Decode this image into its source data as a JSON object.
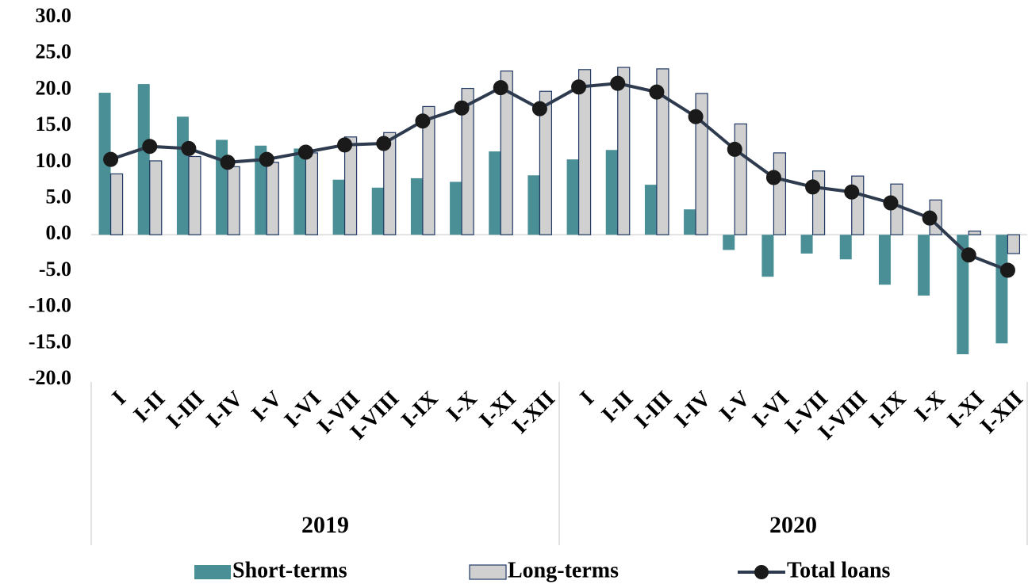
{
  "chart_data": {
    "type": "bar_line",
    "categories": [
      "I",
      "I-II",
      "I-III",
      "I-IV",
      "I-V",
      "I-VI",
      "I-VII",
      "I-VIII",
      "I-IX",
      "I-X",
      "I-XI",
      "I-XII",
      "I",
      "I-II",
      "I-III",
      "I-IV",
      "I-V",
      "I-VI",
      "I-VII",
      "I-VIII",
      "I-IX",
      "I-X",
      "I-XI",
      "I-XII"
    ],
    "groups": [
      "2019",
      "2020"
    ],
    "series": [
      {
        "name": "Short-terms",
        "kind": "bar",
        "color": "#4a8f96",
        "values": [
          19.6,
          20.8,
          16.3,
          13.1,
          12.3,
          11.9,
          7.6,
          6.5,
          7.8,
          7.3,
          11.5,
          8.2,
          10.4,
          11.7,
          6.9,
          3.5,
          -2.1,
          -5.8,
          -2.6,
          -3.4,
          -6.9,
          -8.4,
          -16.5,
          -15.0
        ]
      },
      {
        "name": "Long-terms",
        "kind": "bar",
        "color": "#d0d0d0",
        "values": [
          8.4,
          10.2,
          10.8,
          9.4,
          10.0,
          11.3,
          13.5,
          14.1,
          17.7,
          20.2,
          22.6,
          19.8,
          22.8,
          23.1,
          22.9,
          19.5,
          15.3,
          11.3,
          8.8,
          8.1,
          7.0,
          4.8,
          0.5,
          -2.6
        ]
      },
      {
        "name": "Total loans",
        "kind": "line",
        "color": "#2e3a4e",
        "values": [
          10.4,
          12.2,
          11.9,
          10.0,
          10.4,
          11.4,
          12.4,
          12.6,
          15.7,
          17.5,
          20.3,
          17.4,
          20.4,
          20.9,
          19.7,
          16.3,
          11.8,
          7.9,
          6.6,
          5.9,
          4.4,
          2.3,
          -2.8,
          -4.9
        ]
      }
    ],
    "ylim": [
      -20,
      30
    ],
    "yticks": [
      {
        "value": -20,
        "label": "-20.0"
      },
      {
        "value": -15,
        "label": "-15.0"
      },
      {
        "value": -10,
        "label": "-10.0"
      },
      {
        "value": -5,
        "label": "-5.0"
      },
      {
        "value": 0,
        "label": "0.0"
      },
      {
        "value": 5,
        "label": "5.0"
      },
      {
        "value": 10,
        "label": "10.0"
      },
      {
        "value": 15,
        "label": "15.0"
      },
      {
        "value": 20,
        "label": "20.0"
      },
      {
        "value": 25,
        "label": "25.0"
      },
      {
        "value": 30,
        "label": "30.0"
      }
    ],
    "grid": false
  }
}
